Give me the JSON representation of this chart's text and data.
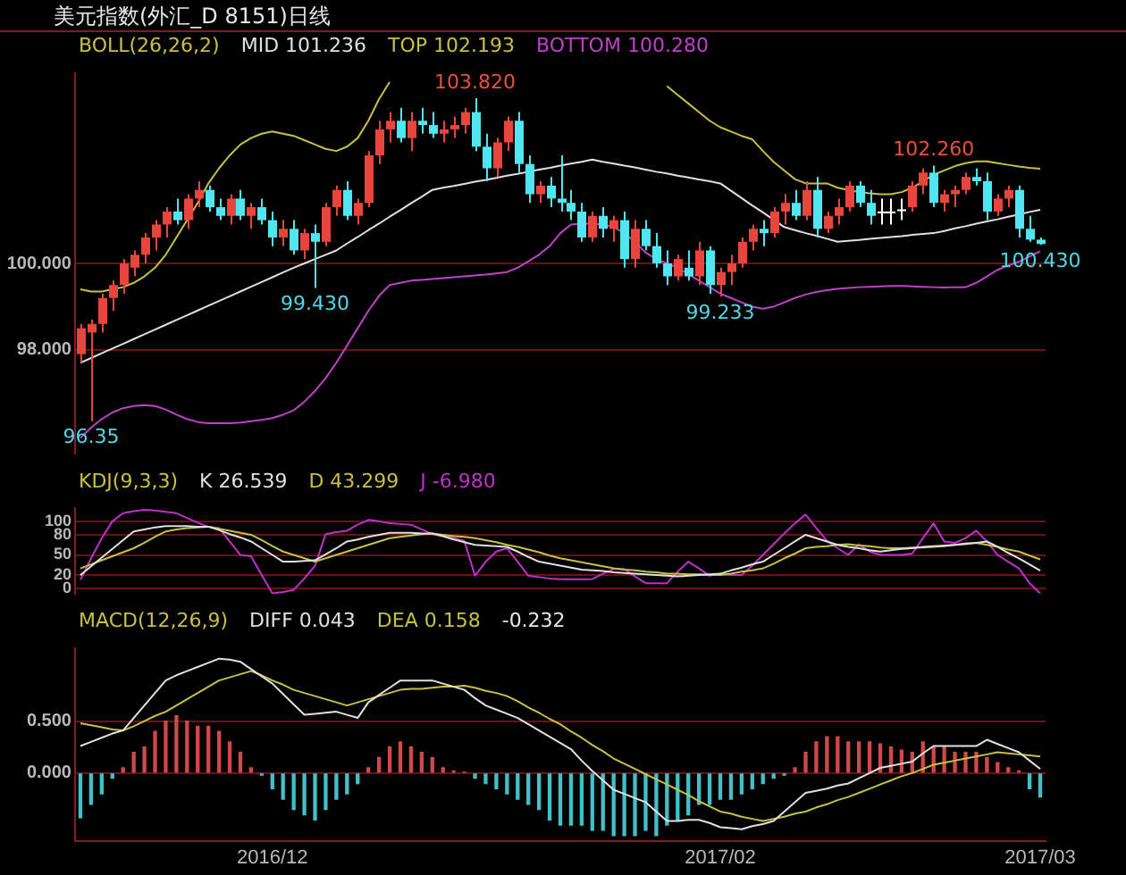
{
  "chart_data": [
    {
      "type": "candlestick",
      "title": "美元指数(外汇_D 8151)日线",
      "legend_title": "BOLL(26,26,2)",
      "legend": "top left",
      "grid": "y",
      "tick_labels": "y",
      "categories": [
        null,
        null,
        null,
        null,
        null,
        null,
        null,
        null,
        null,
        null,
        null,
        null,
        null,
        null,
        null,
        null,
        null,
        null,
        "2016/12",
        null,
        null,
        null,
        null,
        null,
        null,
        null,
        null,
        null,
        null,
        null,
        null,
        null,
        null,
        null,
        null,
        null,
        null,
        null,
        null,
        null,
        null,
        null,
        null,
        null,
        null,
        null,
        null,
        null,
        null,
        null,
        null,
        null,
        null,
        null,
        null,
        null,
        null,
        null,
        null,
        null,
        "2017/02",
        null,
        null,
        null,
        null,
        null,
        null,
        null,
        null,
        null,
        null,
        null,
        null,
        null,
        null,
        null,
        null,
        null,
        null,
        null,
        null,
        null,
        null,
        null,
        null,
        null,
        null,
        null,
        null,
        null,
        "2017/03"
      ],
      "ylim": [
        95.6,
        104.4
      ],
      "yticks": [
        {
          "value": 98,
          "label": "98.000"
        },
        {
          "value": 100,
          "label": "100.000"
        }
      ],
      "ohlc": [
        [
          97.9,
          98.6,
          97.7,
          98.5
        ],
        [
          98.4,
          98.7,
          96.35,
          98.6
        ],
        [
          98.6,
          99.3,
          98.4,
          99.2
        ],
        [
          99.2,
          99.6,
          98.9,
          99.5
        ],
        [
          99.5,
          100.1,
          99.3,
          100.0
        ],
        [
          99.9,
          100.3,
          99.7,
          100.2
        ],
        [
          100.2,
          100.7,
          100.0,
          100.6
        ],
        [
          100.6,
          101.0,
          100.3,
          100.9
        ],
        [
          100.9,
          101.3,
          100.6,
          101.2
        ],
        [
          101.2,
          101.5,
          100.9,
          101.0
        ],
        [
          101.0,
          101.6,
          100.8,
          101.5
        ],
        [
          101.5,
          101.9,
          101.3,
          101.7
        ],
        [
          101.7,
          101.8,
          101.2,
          101.3
        ],
        [
          101.3,
          101.5,
          101.0,
          101.1
        ],
        [
          101.1,
          101.6,
          100.9,
          101.5
        ],
        [
          101.5,
          101.7,
          101.0,
          101.1
        ],
        [
          101.1,
          101.4,
          100.8,
          101.3
        ],
        [
          101.3,
          101.5,
          100.9,
          101.0
        ],
        [
          101.0,
          101.2,
          100.4,
          100.6
        ],
        [
          100.6,
          101.0,
          100.4,
          100.8
        ],
        [
          100.8,
          101.0,
          100.2,
          100.3
        ],
        [
          100.3,
          100.8,
          100.1,
          100.7
        ],
        [
          100.7,
          100.9,
          99.43,
          100.5
        ],
        [
          100.5,
          101.4,
          100.4,
          101.3
        ],
        [
          101.3,
          101.8,
          101.1,
          101.7
        ],
        [
          101.7,
          101.9,
          101.0,
          101.1
        ],
        [
          101.1,
          101.5,
          100.9,
          101.4
        ],
        [
          101.4,
          102.6,
          101.3,
          102.5
        ],
        [
          102.5,
          103.3,
          102.3,
          103.1
        ],
        [
          103.1,
          103.5,
          102.8,
          103.3
        ],
        [
          103.3,
          103.6,
          102.8,
          102.9
        ],
        [
          102.9,
          103.5,
          102.6,
          103.3
        ],
        [
          103.3,
          103.6,
          103.0,
          103.2
        ],
        [
          103.2,
          103.5,
          102.9,
          103.0
        ],
        [
          103.0,
          103.3,
          102.8,
          103.1
        ],
        [
          103.1,
          103.4,
          102.9,
          103.2
        ],
        [
          103.2,
          103.6,
          103.0,
          103.5
        ],
        [
          103.5,
          103.82,
          102.6,
          102.7
        ],
        [
          102.7,
          103.0,
          101.9,
          102.2
        ],
        [
          102.2,
          102.9,
          102.0,
          102.8
        ],
        [
          102.8,
          103.4,
          102.6,
          103.3
        ],
        [
          103.3,
          103.5,
          102.1,
          102.3
        ],
        [
          102.3,
          102.5,
          101.4,
          101.6
        ],
        [
          101.6,
          101.9,
          101.4,
          101.8
        ],
        [
          101.8,
          102.0,
          101.3,
          101.5
        ],
        [
          101.5,
          102.5,
          101.2,
          101.4
        ],
        [
          101.4,
          101.7,
          101.0,
          101.2
        ],
        [
          101.2,
          101.4,
          100.5,
          100.6
        ],
        [
          100.6,
          101.2,
          100.5,
          101.1
        ],
        [
          101.1,
          101.3,
          100.6,
          100.8
        ],
        [
          100.8,
          101.1,
          100.5,
          101.0
        ],
        [
          101.0,
          101.2,
          99.9,
          100.1
        ],
        [
          100.1,
          101.0,
          99.9,
          100.8
        ],
        [
          100.8,
          101.0,
          100.3,
          100.4
        ],
        [
          100.4,
          100.7,
          99.9,
          100.0
        ],
        [
          100.0,
          100.3,
          99.5,
          99.7
        ],
        [
          99.7,
          100.2,
          99.6,
          100.1
        ],
        [
          99.9,
          100.3,
          99.6,
          99.7
        ],
        [
          99.7,
          100.5,
          99.5,
          100.3
        ],
        [
          100.3,
          100.4,
          99.3,
          99.5
        ],
        [
          99.5,
          99.9,
          99.233,
          99.8
        ],
        [
          99.8,
          100.2,
          99.5,
          100.0
        ],
        [
          100.0,
          100.6,
          99.9,
          100.5
        ],
        [
          100.5,
          100.9,
          100.3,
          100.8
        ],
        [
          100.8,
          101.0,
          100.4,
          100.7
        ],
        [
          100.7,
          101.3,
          100.6,
          101.2
        ],
        [
          101.2,
          101.6,
          100.9,
          101.4
        ],
        [
          101.4,
          101.7,
          101.0,
          101.1
        ],
        [
          101.1,
          101.9,
          101.0,
          101.7
        ],
        [
          101.7,
          102.0,
          100.6,
          100.8
        ],
        [
          100.8,
          101.2,
          100.7,
          101.1
        ],
        [
          101.1,
          101.5,
          100.9,
          101.3
        ],
        [
          101.3,
          101.9,
          101.2,
          101.8
        ],
        [
          101.8,
          101.9,
          101.3,
          101.4
        ],
        [
          101.4,
          101.7,
          100.9,
          101.1
        ],
        [
          101.2,
          101.5,
          100.9,
          101.2
        ],
        [
          101.2,
          101.5,
          100.9,
          101.2
        ],
        [
          101.25,
          101.5,
          101.0,
          101.25
        ],
        [
          101.3,
          101.9,
          101.2,
          101.8
        ],
        [
          101.8,
          102.2,
          101.6,
          102.1
        ],
        [
          102.1,
          102.26,
          101.3,
          101.4
        ],
        [
          101.4,
          101.7,
          101.2,
          101.6
        ],
        [
          101.6,
          101.8,
          101.3,
          101.7
        ],
        [
          101.7,
          102.1,
          101.6,
          102.0
        ],
        [
          102.0,
          102.2,
          101.8,
          101.9
        ],
        [
          101.9,
          102.1,
          101.0,
          101.2
        ],
        [
          101.2,
          101.6,
          101.1,
          101.5
        ],
        [
          101.5,
          101.8,
          101.3,
          101.7
        ],
        [
          101.7,
          101.8,
          100.6,
          100.8
        ],
        [
          100.8,
          101.1,
          100.5,
          100.55
        ],
        [
          100.55,
          100.6,
          100.43,
          100.45
        ]
      ],
      "colors": [
        "#e8453c",
        "#e8453c",
        "#e8453c",
        "#e8453c",
        "#e8453c",
        "#e8453c",
        "#e8453c",
        "#e8453c",
        "#e8453c",
        "#4fe6f0",
        "#e8453c",
        "#e8453c",
        "#4fe6f0",
        "#4fe6f0",
        "#e8453c",
        "#4fe6f0",
        "#e8453c",
        "#4fe6f0",
        "#4fe6f0",
        "#e8453c",
        "#4fe6f0",
        "#e8453c",
        "#4fe6f0",
        "#e8453c",
        "#e8453c",
        "#4fe6f0",
        "#e8453c",
        "#e8453c",
        "#e8453c",
        "#e8453c",
        "#4fe6f0",
        "#e8453c",
        "#4fe6f0",
        "#4fe6f0",
        "#e8453c",
        "#e8453c",
        "#e8453c",
        "#4fe6f0",
        "#4fe6f0",
        "#e8453c",
        "#e8453c",
        "#4fe6f0",
        "#4fe6f0",
        "#e8453c",
        "#4fe6f0",
        "#4fe6f0",
        "#4fe6f0",
        "#4fe6f0",
        "#e8453c",
        "#4fe6f0",
        "#e8453c",
        "#4fe6f0",
        "#e8453c",
        "#4fe6f0",
        "#4fe6f0",
        "#4fe6f0",
        "#e8453c",
        "#4fe6f0",
        "#e8453c",
        "#4fe6f0",
        "#e8453c",
        "#e8453c",
        "#e8453c",
        "#e8453c",
        "#4fe6f0",
        "#e8453c",
        "#e8453c",
        "#4fe6f0",
        "#e8453c",
        "#4fe6f0",
        "#e8453c",
        "#e8453c",
        "#e8453c",
        "#4fe6f0",
        "#4fe6f0",
        "#ffffff",
        "#ffffff",
        "#ffffff",
        "#e8453c",
        "#e8453c",
        "#4fe6f0",
        "#e8453c",
        "#e8453c",
        "#e8453c",
        "#4fe6f0",
        "#4fe6f0",
        "#e8453c",
        "#e8453c",
        "#4fe6f0",
        "#4fe6f0",
        "#4fe6f0"
      ],
      "series": [
        {
          "name": "MID 101.236",
          "type": "line",
          "color": "#e0e0e0",
          "values": [
            97.7,
            97.81,
            97.92,
            98.03,
            98.14,
            98.25,
            98.36,
            98.47,
            98.58,
            98.69,
            98.8,
            98.91,
            99.02,
            99.13,
            99.24,
            99.35,
            99.46,
            99.57,
            99.68,
            99.79,
            99.9,
            100.0,
            100.1,
            100.2,
            100.3,
            100.46,
            100.61,
            100.77,
            100.92,
            101.08,
            101.23,
            101.39,
            101.54,
            101.7,
            101.75,
            101.79,
            101.84,
            101.89,
            101.93,
            101.98,
            102.03,
            102.07,
            102.12,
            102.17,
            102.21,
            102.26,
            102.31,
            102.35,
            102.4,
            102.35,
            102.31,
            102.26,
            102.22,
            102.17,
            102.12,
            102.08,
            102.03,
            101.99,
            101.94,
            101.9,
            101.85,
            101.68,
            101.51,
            101.34,
            101.18,
            101.01,
            100.84,
            100.77,
            100.7,
            100.64,
            100.57,
            100.5,
            100.52,
            100.54,
            100.57,
            100.59,
            100.61,
            100.63,
            100.66,
            100.68,
            100.7,
            100.75,
            100.81,
            100.86,
            100.92,
            100.97,
            101.02,
            101.08,
            101.13,
            101.19,
            101.24
          ]
        },
        {
          "name": "TOP 102.193",
          "type": "line",
          "color": "#c8c040",
          "values": [
            99.4,
            99.35,
            99.35,
            99.4,
            99.45,
            99.55,
            99.7,
            99.9,
            100.2,
            100.6,
            101.0,
            101.4,
            101.85,
            102.2,
            102.5,
            102.75,
            102.9,
            103.0,
            103.05,
            103.0,
            102.95,
            102.85,
            102.75,
            102.65,
            102.6,
            102.7,
            102.9,
            103.3,
            103.8,
            104.2,
            null,
            null,
            null,
            null,
            null,
            null,
            null,
            null,
            null,
            null,
            null,
            null,
            null,
            null,
            null,
            null,
            null,
            null,
            null,
            null,
            null,
            null,
            null,
            null,
            null,
            104.1,
            103.9,
            103.7,
            103.5,
            103.3,
            103.15,
            103.05,
            102.95,
            102.87,
            102.6,
            102.35,
            102.15,
            101.95,
            101.85,
            101.85,
            101.85,
            101.75,
            101.7,
            101.65,
            101.62,
            101.6,
            101.6,
            101.65,
            101.75,
            101.9,
            102.05,
            102.15,
            102.25,
            102.32,
            102.36,
            102.36,
            102.32,
            102.28,
            102.24,
            102.21,
            102.19
          ]
        },
        {
          "name": "BOTTOM 100.280",
          "type": "line",
          "color": "#c040c8",
          "values": [
            95.96,
            96.2,
            96.4,
            96.55,
            96.65,
            96.7,
            96.72,
            96.7,
            96.62,
            96.5,
            96.4,
            96.33,
            96.3,
            96.3,
            96.3,
            96.32,
            96.35,
            96.38,
            96.42,
            96.5,
            96.6,
            96.8,
            97.05,
            97.35,
            97.7,
            98.1,
            98.5,
            98.9,
            99.25,
            99.5,
            99.55,
            99.6,
            99.62,
            99.64,
            99.66,
            99.68,
            99.7,
            99.72,
            99.74,
            99.77,
            99.8,
            99.9,
            100.05,
            100.2,
            100.4,
            100.7,
            100.9,
            100.92,
            100.92,
            100.9,
            100.84,
            100.7,
            100.5,
            100.25,
            100.1,
            100.0,
            99.9,
            99.75,
            99.6,
            99.45,
            99.3,
            99.2,
            99.1,
            99.0,
            98.95,
            99.0,
            99.1,
            99.2,
            99.28,
            99.34,
            99.38,
            99.41,
            99.43,
            99.45,
            99.46,
            99.47,
            99.48,
            99.48,
            99.47,
            99.46,
            99.45,
            99.44,
            99.45,
            99.45,
            99.55,
            99.7,
            99.85,
            99.95,
            100.04,
            100.16,
            100.28
          ]
        }
      ],
      "annotations": [
        {
          "text": "103.820",
          "y": 103.82
        },
        {
          "text": "99.430",
          "y": 99.43
        },
        {
          "text": "99.233",
          "y": 99.233
        },
        {
          "text": "102.260",
          "y": 102.26
        },
        {
          "text": "100.430",
          "y": 100.43
        },
        {
          "text": "96.35",
          "y": 96.35
        }
      ]
    },
    {
      "type": "line",
      "legend_title": "KDJ(9,3,3)",
      "legend": "top left",
      "grid": "y",
      "tick_labels": "y",
      "categories": [
        null,
        null,
        null,
        null,
        null,
        null,
        null,
        null,
        null,
        null,
        null,
        null,
        null,
        null,
        null,
        null,
        null,
        null,
        "2016/12",
        null,
        null,
        null,
        null,
        null,
        null,
        null,
        null,
        null,
        null,
        null,
        null,
        null,
        null,
        null,
        null,
        null,
        null,
        null,
        null,
        null,
        null,
        null,
        null,
        null,
        null,
        null,
        null,
        null,
        null,
        null,
        null,
        null,
        null,
        null,
        null,
        null,
        null,
        null,
        null,
        null,
        "2017/02",
        null,
        null,
        null,
        null,
        null,
        null,
        null,
        null,
        null,
        null,
        null,
        null,
        null,
        null,
        null,
        null,
        null,
        null,
        null,
        null,
        null,
        null,
        null,
        null,
        null,
        null,
        null,
        null,
        null,
        "2017/03"
      ],
      "ylim": [
        -8,
        120
      ],
      "yticks": [
        0,
        20,
        50,
        80,
        100
      ],
      "series": [
        {
          "name": "K 26.539",
          "color": "#e0e0e0",
          "values": [
            20,
            33,
            46,
            59,
            72,
            85,
            88,
            91,
            93,
            93,
            93,
            92,
            92,
            87,
            81,
            76,
            70,
            60,
            50,
            40,
            40,
            41,
            42,
            51,
            60,
            70,
            73,
            77,
            80,
            83,
            83,
            83,
            82,
            82,
            78,
            73,
            69,
            65,
            64,
            63,
            62,
            55,
            47,
            40,
            37,
            34,
            31,
            28,
            27,
            26,
            24,
            23,
            22,
            21,
            20,
            19,
            18,
            19,
            20,
            21,
            22,
            27,
            31,
            36,
            40,
            50,
            60,
            70,
            80,
            75,
            70,
            65,
            62,
            60,
            57,
            55,
            57,
            59,
            60,
            62,
            63,
            64,
            65,
            67,
            68,
            70,
            62,
            53,
            45,
            36,
            26.5
          ]
        },
        {
          "name": "D 43.299",
          "color": "#c8c040",
          "values": [
            30,
            36,
            42,
            48,
            54,
            60,
            68,
            77,
            85,
            88,
            90,
            91,
            92,
            89,
            86,
            83,
            80,
            72,
            63,
            55,
            50,
            45,
            40,
            45,
            50,
            55,
            60,
            65,
            70,
            75,
            77,
            79,
            81,
            82,
            80,
            78,
            77,
            75,
            72,
            69,
            65,
            62,
            58,
            54,
            49,
            45,
            42,
            39,
            36,
            33,
            30,
            28,
            27,
            25,
            24,
            22,
            22,
            21,
            21,
            20,
            20,
            22,
            25,
            27,
            30,
            37,
            45,
            52,
            60,
            62,
            63,
            65,
            66,
            64,
            63,
            61,
            60,
            60,
            61,
            61,
            62,
            63,
            65,
            66,
            68,
            65,
            62,
            58,
            55,
            49,
            43.3
          ]
        },
        {
          "name": "J -6.980",
          "color": "#c030c8",
          "values": [
            13,
            45,
            75,
            100,
            112,
            115,
            117,
            116,
            114,
            112,
            105,
            98,
            92,
            90,
            70,
            50,
            48,
            20,
            -7,
            -5,
            -2,
            15,
            34,
            81,
            84,
            86,
            95,
            102,
            100,
            97,
            96,
            95,
            88,
            81,
            78,
            75,
            71,
            19,
            40,
            55,
            60,
            40,
            19,
            17,
            15,
            14,
            14,
            14,
            14,
            22,
            29,
            29,
            18,
            8,
            8,
            8,
            25,
            40,
            30,
            19,
            22,
            20,
            20,
            34,
            50,
            66,
            82,
            97,
            110,
            90,
            71,
            60,
            50,
            66,
            55,
            50,
            50,
            50,
            52,
            75,
            97,
            70,
            68,
            75,
            86,
            70,
            50,
            40,
            30,
            8,
            -7
          ]
        }
      ]
    },
    {
      "type": "line",
      "legend_title": "MACD(12,26,9)",
      "legend": "top left",
      "grid": "y",
      "categories": [
        null,
        null,
        null,
        null,
        null,
        null,
        null,
        null,
        null,
        null,
        null,
        null,
        null,
        null,
        null,
        null,
        null,
        null,
        "2016/12",
        null,
        null,
        null,
        null,
        null,
        null,
        null,
        null,
        null,
        null,
        null,
        null,
        null,
        null,
        null,
        null,
        null,
        null,
        null,
        null,
        null,
        null,
        null,
        null,
        null,
        null,
        null,
        null,
        null,
        null,
        null,
        null,
        null,
        null,
        null,
        null,
        null,
        null,
        null,
        null,
        null,
        "2017/02",
        null,
        null,
        null,
        null,
        null,
        null,
        null,
        null,
        null,
        null,
        null,
        null,
        null,
        null,
        null,
        null,
        null,
        null,
        null,
        null,
        null,
        null,
        null,
        null,
        null,
        null,
        null,
        null,
        null,
        "2017/03"
      ],
      "ylim": [
        -0.65,
        1.2
      ],
      "yticks": [
        {
          "value": 0,
          "label": "0.000"
        },
        {
          "value": 0.5,
          "label": "0.500"
        }
      ],
      "annotations": [
        "-0.232"
      ],
      "series": [
        {
          "type": "bar",
          "values": [
            -0.43,
            -0.3,
            -0.2,
            -0.05,
            0.05,
            0.2,
            0.25,
            0.4,
            0.5,
            0.55,
            0.5,
            0.45,
            0.45,
            0.4,
            0.3,
            0.2,
            0.05,
            -0.02,
            -0.15,
            -0.25,
            -0.35,
            -0.4,
            -0.45,
            -0.35,
            -0.25,
            -0.2,
            -0.1,
            0.05,
            0.15,
            0.25,
            0.3,
            0.25,
            0.2,
            0.15,
            0.05,
            0.02,
            0.01,
            -0.05,
            -0.1,
            -0.15,
            -0.2,
            -0.25,
            -0.3,
            -0.35,
            -0.45,
            -0.5,
            -0.5,
            -0.5,
            -0.55,
            -0.55,
            -0.6,
            -0.6,
            -0.6,
            -0.55,
            -0.6,
            -0.5,
            -0.45,
            -0.4,
            -0.3,
            -0.3,
            -0.25,
            -0.25,
            -0.2,
            -0.15,
            -0.1,
            -0.05,
            -0.02,
            0.05,
            0.2,
            0.3,
            0.35,
            0.35,
            0.3,
            0.3,
            0.3,
            0.28,
            0.25,
            0.22,
            0.2,
            0.3,
            0.25,
            0.25,
            0.2,
            0.2,
            0.2,
            0.15,
            0.1,
            0.05,
            0.02,
            -0.15,
            -0.23
          ],
          "colors": [
            "#40c0c8",
            "#40c0c8",
            "#40c0c8",
            "#40c0c8",
            "#d04848",
            "#d04848",
            "#d04848",
            "#d04848",
            "#d04848",
            "#d04848",
            "#d04848",
            "#d04848",
            "#d04848",
            "#d04848",
            "#d04848",
            "#d04848",
            "#d04848",
            "#40c0c8",
            "#40c0c8",
            "#40c0c8",
            "#40c0c8",
            "#40c0c8",
            "#40c0c8",
            "#40c0c8",
            "#40c0c8",
            "#40c0c8",
            "#40c0c8",
            "#d04848",
            "#d04848",
            "#d04848",
            "#d04848",
            "#d04848",
            "#d04848",
            "#d04848",
            "#d04848",
            "#d04848",
            "#d04848",
            "#40c0c8",
            "#40c0c8",
            "#40c0c8",
            "#40c0c8",
            "#40c0c8",
            "#40c0c8",
            "#40c0c8",
            "#40c0c8",
            "#40c0c8",
            "#40c0c8",
            "#40c0c8",
            "#40c0c8",
            "#40c0c8",
            "#40c0c8",
            "#40c0c8",
            "#40c0c8",
            "#40c0c8",
            "#40c0c8",
            "#40c0c8",
            "#40c0c8",
            "#40c0c8",
            "#40c0c8",
            "#40c0c8",
            "#40c0c8",
            "#40c0c8",
            "#40c0c8",
            "#40c0c8",
            "#40c0c8",
            "#40c0c8",
            "#40c0c8",
            "#d04848",
            "#d04848",
            "#d04848",
            "#d04848",
            "#d04848",
            "#d04848",
            "#d04848",
            "#d04848",
            "#d04848",
            "#d04848",
            "#d04848",
            "#d04848",
            "#d04848",
            "#d04848",
            "#d04848",
            "#d04848",
            "#d04848",
            "#d04848",
            "#d04848",
            "#d04848",
            "#d04848",
            "#d04848",
            "#40c0c8",
            "#40c0c8"
          ]
        },
        {
          "name": "DIFF 0.043",
          "type": "line",
          "color": "#e0e0e0",
          "values": [
            0.26,
            0.3,
            0.34,
            0.38,
            0.41,
            0.53,
            0.65,
            0.77,
            0.89,
            0.94,
            0.98,
            1.02,
            1.06,
            1.1,
            1.09,
            1.07,
            1.0,
            0.93,
            0.86,
            0.76,
            0.66,
            0.56,
            0.57,
            0.58,
            0.59,
            0.56,
            0.53,
            0.68,
            0.75,
            0.82,
            0.89,
            0.89,
            0.89,
            0.89,
            0.86,
            0.83,
            0.8,
            0.72,
            0.65,
            0.61,
            0.57,
            0.53,
            0.47,
            0.41,
            0.35,
            0.29,
            0.23,
            0.12,
            0.02,
            -0.07,
            -0.16,
            -0.2,
            -0.24,
            -0.28,
            -0.37,
            -0.46,
            -0.46,
            -0.45,
            -0.45,
            -0.48,
            -0.52,
            -0.53,
            -0.54,
            -0.51,
            -0.49,
            -0.46,
            -0.37,
            -0.28,
            -0.19,
            -0.17,
            -0.15,
            -0.12,
            -0.1,
            -0.05,
            0.0,
            0.05,
            0.07,
            0.09,
            0.11,
            0.19,
            0.26,
            0.26,
            0.26,
            0.26,
            0.26,
            0.32,
            0.28,
            0.24,
            0.2,
            0.12,
            0.04
          ]
        },
        {
          "name": "DEA 0.158",
          "type": "line",
          "color": "#c8c040",
          "values": [
            0.48,
            0.46,
            0.44,
            0.42,
            0.41,
            0.45,
            0.5,
            0.55,
            0.59,
            0.65,
            0.71,
            0.77,
            0.83,
            0.89,
            0.92,
            0.95,
            0.98,
            0.94,
            0.89,
            0.85,
            0.8,
            0.77,
            0.74,
            0.71,
            0.68,
            0.65,
            0.68,
            0.71,
            0.74,
            0.77,
            0.8,
            0.81,
            0.81,
            0.82,
            0.83,
            0.83,
            0.84,
            0.82,
            0.79,
            0.77,
            0.74,
            0.69,
            0.63,
            0.58,
            0.52,
            0.47,
            0.4,
            0.34,
            0.27,
            0.21,
            0.14,
            0.09,
            0.04,
            -0.01,
            -0.06,
            -0.11,
            -0.16,
            -0.21,
            -0.27,
            -0.32,
            -0.37,
            -0.39,
            -0.42,
            -0.44,
            -0.46,
            -0.44,
            -0.42,
            -0.39,
            -0.37,
            -0.33,
            -0.3,
            -0.26,
            -0.23,
            -0.19,
            -0.15,
            -0.11,
            -0.07,
            -0.03,
            0.0,
            0.04,
            0.08,
            0.1,
            0.12,
            0.14,
            0.16,
            0.18,
            0.2,
            0.19,
            0.18,
            0.17,
            0.16
          ]
        }
      ]
    }
  ]
}
